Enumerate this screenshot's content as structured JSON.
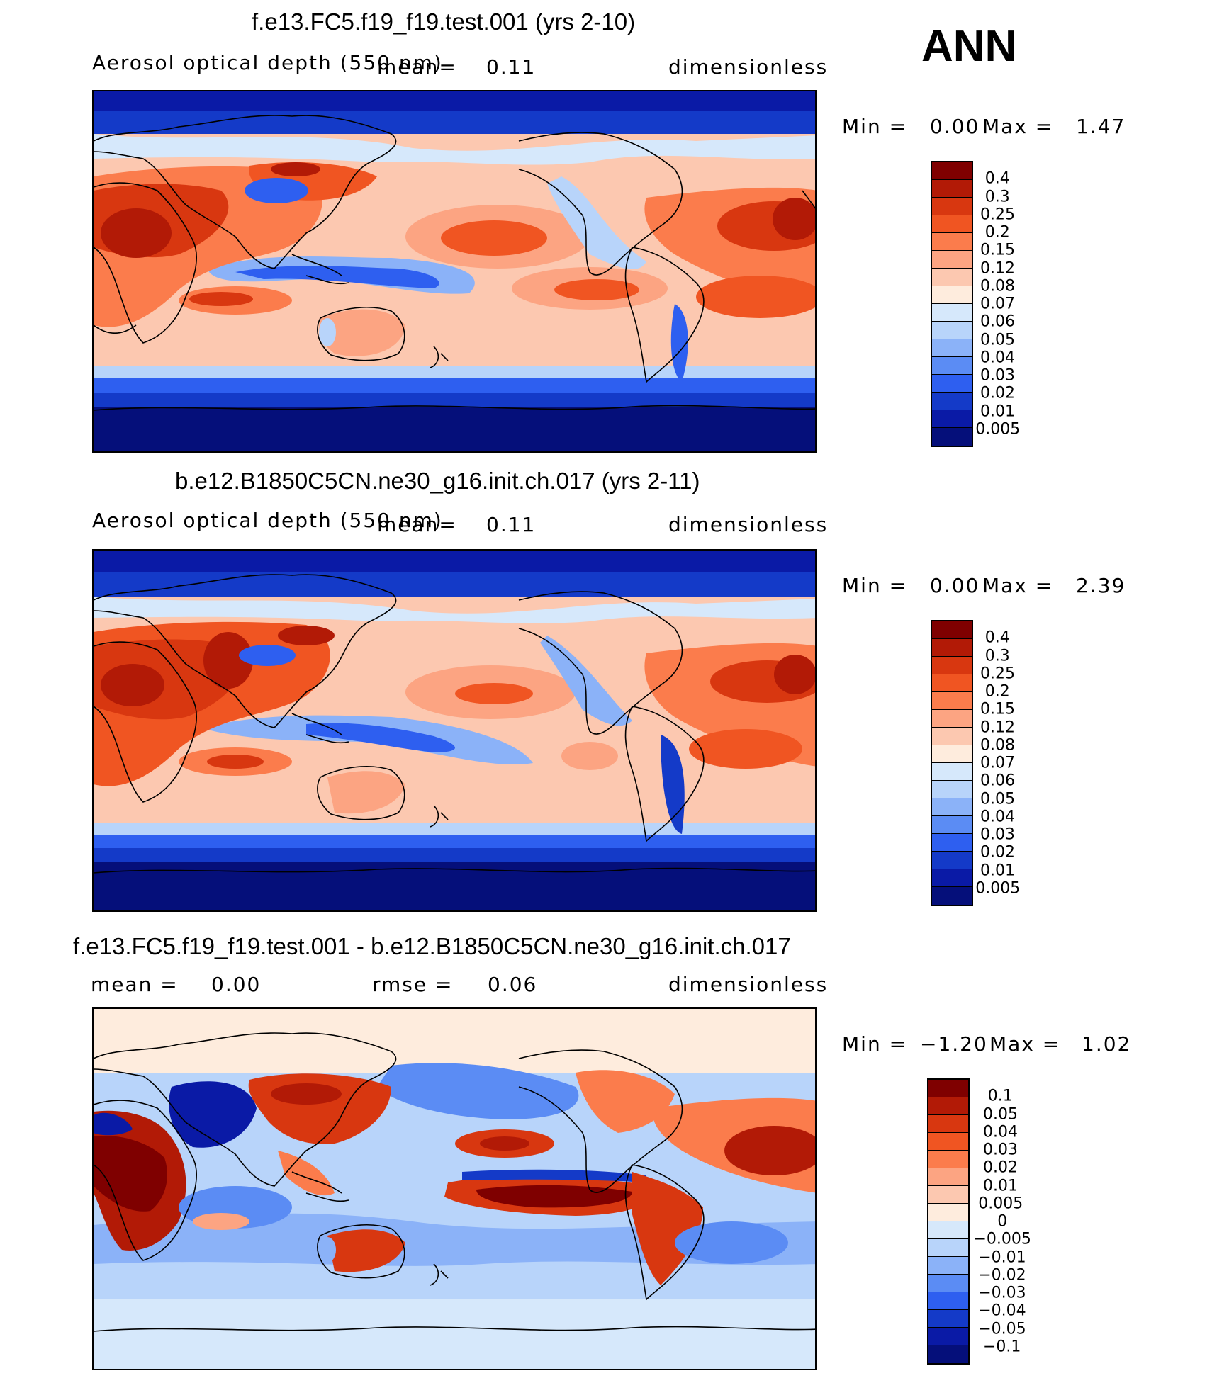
{
  "season": "ANN",
  "panels": [
    {
      "title": "f.e13.FC5.f19_f19.test.001 (yrs 2-10)",
      "variable": "Aerosol optical depth (550 nm)",
      "mean_label": "mean=",
      "mean_value": "0.11",
      "units": "dimensionless",
      "min_label": "Min =",
      "min_value": "0.00",
      "max_label": "Max =",
      "max_value": "1.47",
      "legend": {
        "labels": [
          "0.4",
          "0.3",
          "0.25",
          "0.2",
          "0.15",
          "0.12",
          "0.08",
          "0.07",
          "0.06",
          "0.05",
          "0.04",
          "0.03",
          "0.02",
          "0.01",
          "0.005"
        ],
        "colors": [
          "#7f0000",
          "#b21a06",
          "#d83710",
          "#f05522",
          "#fb7c4c",
          "#fca482",
          "#fcc8b0",
          "#feecdd",
          "#d6e8fb",
          "#b8d4fa",
          "#8bb2f8",
          "#5b8cf4",
          "#2e5ff0",
          "#143ac8",
          "#0a1aa6",
          "#050f7a"
        ]
      }
    },
    {
      "title": "b.e12.B1850C5CN.ne30_g16.init.ch.017 (yrs 2-11)",
      "variable": "Aerosol optical depth (550 nm)",
      "mean_label": "mean=",
      "mean_value": "0.11",
      "units": "dimensionless",
      "min_label": "Min =",
      "min_value": "0.00",
      "max_label": "Max =",
      "max_value": "2.39",
      "legend": {
        "labels": [
          "0.4",
          "0.3",
          "0.25",
          "0.2",
          "0.15",
          "0.12",
          "0.08",
          "0.07",
          "0.06",
          "0.05",
          "0.04",
          "0.03",
          "0.02",
          "0.01",
          "0.005"
        ],
        "colors": [
          "#7f0000",
          "#b21a06",
          "#d83710",
          "#f05522",
          "#fb7c4c",
          "#fca482",
          "#fcc8b0",
          "#feecdd",
          "#d6e8fb",
          "#b8d4fa",
          "#8bb2f8",
          "#5b8cf4",
          "#2e5ff0",
          "#143ac8",
          "#0a1aa6",
          "#050f7a"
        ]
      }
    },
    {
      "title": "f.e13.FC5.f19_f19.test.001 - b.e12.B1850C5CN.ne30_g16.init.ch.017",
      "mean_label": "mean =",
      "mean_value": "0.00",
      "rmse_label": "rmse =",
      "rmse_value": "0.06",
      "units": "dimensionless",
      "min_label": "Min =",
      "min_value": "−1.20",
      "max_label": "Max =",
      "max_value": "1.02",
      "legend": {
        "labels": [
          "0.1",
          "0.05",
          "0.04",
          "0.03",
          "0.02",
          "0.01",
          "0.005",
          "0",
          "−0.005",
          "−0.01",
          "−0.02",
          "−0.03",
          "−0.04",
          "−0.05",
          "−0.1"
        ],
        "colors": [
          "#7f0000",
          "#b21a06",
          "#d83710",
          "#f05522",
          "#fb7c4c",
          "#fca482",
          "#fcc8b0",
          "#feecdd",
          "#d6e8fb",
          "#b8d4fa",
          "#8bb2f8",
          "#5b8cf4",
          "#2e5ff0",
          "#143ac8",
          "#0a1aa6",
          "#050f7a"
        ]
      }
    }
  ]
}
